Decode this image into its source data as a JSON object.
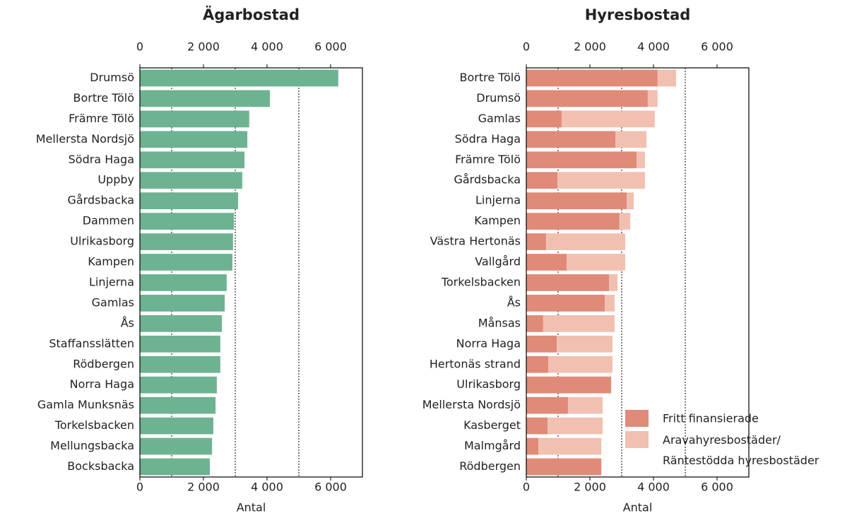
{
  "chart_data": [
    {
      "type": "bar",
      "orientation": "horizontal",
      "title": "Ägarbostad",
      "xlabel": "Antal",
      "categories": [
        "Drumsö",
        "Bortre Tölö",
        "Främre Tölö",
        "Mellersta Nordsjö",
        "Södra Haga",
        "Uppby",
        "Gårdsbacka",
        "Dammen",
        "Ulrikasborg",
        "Kampen",
        "Linjerna",
        "Gamlas",
        "Ås",
        "Staffansslätten",
        "Rödbergen",
        "Norra Haga",
        "Gamla Munksnäs",
        "Torkelsbacken",
        "Mellungsbacka",
        "Bocksbacka"
      ],
      "values": [
        6240,
        4090,
        3440,
        3380,
        3290,
        3220,
        3090,
        2960,
        2930,
        2910,
        2730,
        2670,
        2580,
        2530,
        2530,
        2420,
        2380,
        2310,
        2270,
        2200
      ],
      "color": "#6db391",
      "xlim": [
        0,
        7000
      ],
      "xticks": [
        0,
        {
          "value": 2000,
          "label": "2 000"
        },
        {
          "value": 4000,
          "label": "4 000"
        },
        {
          "value": 6000,
          "label": "6 000"
        }
      ],
      "xgrid": [
        1000,
        3000,
        5000
      ]
    },
    {
      "type": "stacked_bar",
      "orientation": "horizontal",
      "title": "Hyresbostad",
      "xlabel": "Antal",
      "categories": [
        "Bortre Tölö",
        "Drumsö",
        "Gamlas",
        "Södra Haga",
        "Främre Tölö",
        "Gårdsbacka",
        "Linjerna",
        "Kampen",
        "Västra Hertonäs",
        "Vallgård",
        "Torkelsbacken",
        "Ås",
        "Månsas",
        "Norra Haga",
        "Hertonäs strand",
        "Ulrikasborg",
        "Mellersta Nordsjö",
        "Kasberget",
        "Malmgård",
        "Rödbergen"
      ],
      "series": [
        {
          "name": "Fritt finansierade",
          "color": "#e08a78",
          "values": [
            4130,
            3820,
            1110,
            2800,
            3470,
            980,
            3160,
            2930,
            620,
            1270,
            2600,
            2470,
            530,
            960,
            690,
            2670,
            1310,
            670,
            380,
            2360
          ]
        },
        {
          "name": "Aravahyresbostäder/\nRäntestödda hyresbostäder",
          "color": "#f1c0b1",
          "values": [
            580,
            310,
            2930,
            980,
            260,
            2750,
            220,
            340,
            2490,
            1840,
            270,
            310,
            2250,
            1750,
            2020,
            0,
            1090,
            1730,
            1980,
            0
          ]
        }
      ],
      "xlim": [
        0,
        7000
      ],
      "xticks": [
        0,
        {
          "value": 2000,
          "label": "2 000"
        },
        {
          "value": 4000,
          "label": "4 000"
        },
        {
          "value": 6000,
          "label": "6 000"
        }
      ],
      "xgrid": [
        1000,
        3000,
        5000
      ],
      "legend": "lower right"
    }
  ]
}
